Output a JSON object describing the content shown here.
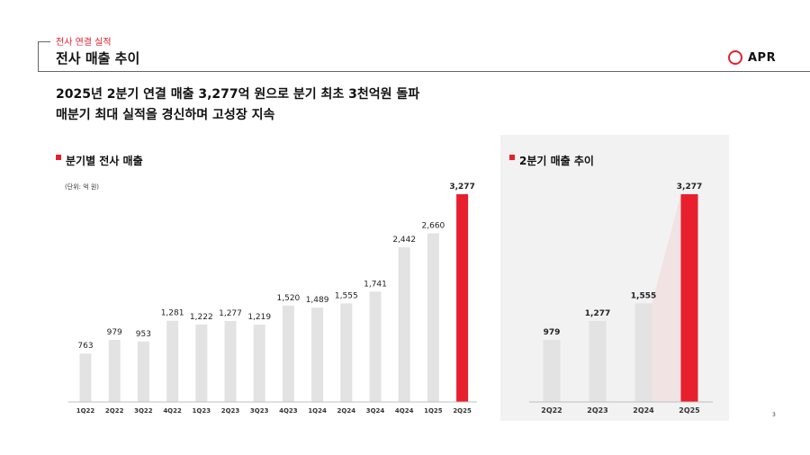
{
  "header": {
    "section_label": "전사 연결 실적",
    "page_title": "전사 매출 추이",
    "logo_text": "APR"
  },
  "headline": {
    "line1": "2025년 2분기 연결 매출 3,277억 원으로 분기 최초 3천억원 돌파",
    "line2": "매분기 최대 실적을 경신하며 고성장 지속"
  },
  "page_number": "3",
  "colors": {
    "accent": "#e8202e",
    "bar": "#e3e3e3",
    "panel_bg": "#f2f2f2"
  },
  "chart_data": [
    {
      "type": "bar",
      "title": "분기별 전사 매출",
      "unit": "(단위: 억 원)",
      "categories": [
        "1Q22",
        "2Q22",
        "3Q22",
        "4Q22",
        "1Q23",
        "2Q23",
        "3Q23",
        "4Q23",
        "1Q24",
        "2Q24",
        "3Q24",
        "4Q24",
        "1Q25",
        "2Q25"
      ],
      "values": [
        763,
        979,
        953,
        1281,
        1222,
        1277,
        1219,
        1520,
        1489,
        1555,
        1741,
        2442,
        2660,
        3277
      ],
      "value_labels": [
        "763",
        "979",
        "953",
        "1,281",
        "1,222",
        "1,277",
        "1,219",
        "1,520",
        "1,489",
        "1,555",
        "1,741",
        "2,442",
        "2,660",
        "3,277"
      ],
      "highlight": "2Q25",
      "ylim": [
        0,
        3277
      ]
    },
    {
      "type": "bar",
      "title": "2분기 매출 추이",
      "categories": [
        "2Q22",
        "2Q23",
        "2Q24",
        "2Q25"
      ],
      "values": [
        979,
        1277,
        1555,
        3277
      ],
      "value_labels": [
        "979",
        "1,277",
        "1,555",
        "3,277"
      ],
      "highlight": "2Q25",
      "ylim": [
        0,
        3277
      ]
    }
  ]
}
